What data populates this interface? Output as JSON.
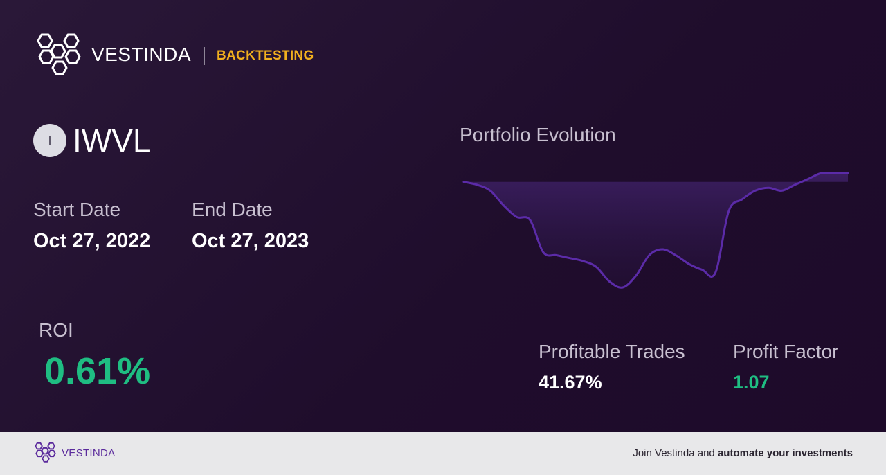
{
  "header": {
    "brand": "VESTINDA",
    "section": "BACKTESTING"
  },
  "ticker": {
    "badge_letter": "I",
    "symbol": "IWVL"
  },
  "dates": {
    "start_label": "Start Date",
    "start_value": "Oct 27, 2022",
    "end_label": "End Date",
    "end_value": "Oct 27, 2023"
  },
  "roi": {
    "label": "ROI",
    "value": "0.61%"
  },
  "chart": {
    "title": "Portfolio Evolution"
  },
  "chart_data": {
    "type": "line",
    "title": "Portfolio Evolution",
    "xlabel": "",
    "ylabel": "",
    "grid": false,
    "legend": "none",
    "baseline": 0,
    "series": [
      {
        "values": [
          0,
          -1,
          -3,
          -8,
          -12,
          -13,
          -24,
          -25,
          -26,
          -27,
          -29,
          -34,
          -36,
          -32,
          -25,
          -23,
          -25,
          -28,
          -30,
          -31,
          -10,
          -6,
          -3,
          -2,
          -3,
          -1,
          1,
          3,
          3,
          3
        ]
      }
    ],
    "ylim": [
      -36,
      3
    ],
    "colors": {
      "line": "#5b2ba8",
      "fill": "#3a1d5c"
    }
  },
  "stats": {
    "profitable_trades_label": "Profitable Trades",
    "profitable_trades_value": "41.67%",
    "profit_factor_label": "Profit Factor",
    "profit_factor_value": "1.07"
  },
  "footer": {
    "brand": "VESTINDA",
    "cta_prefix": "Join Vestinda and ",
    "cta_bold": "automate your investments"
  },
  "colors": {
    "accent": "#f2b01e",
    "positive": "#1fbd82",
    "brand_purple": "#5b2b9c"
  }
}
